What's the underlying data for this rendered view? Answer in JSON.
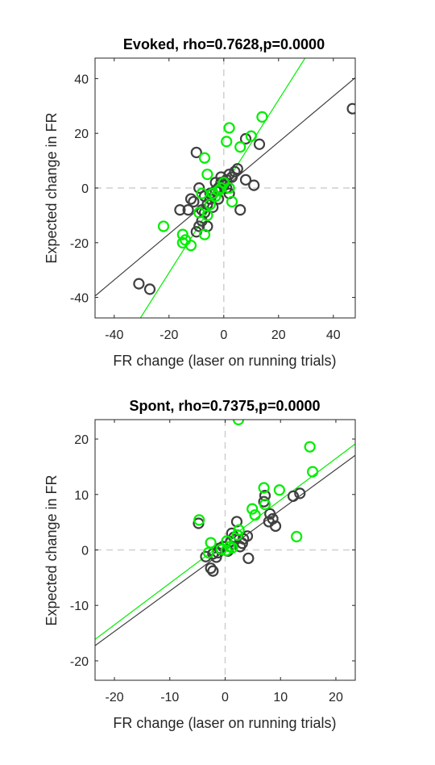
{
  "chart_data": [
    {
      "type": "scatter",
      "title": "Evoked, rho=0.7628,p=0.0000",
      "xlabel": "FR change (laser on running trials)",
      "ylabel": "Expected change in FR",
      "xlim": [
        -47,
        48
      ],
      "ylim": [
        -47.5,
        47.5
      ],
      "xticks": [
        -40,
        -20,
        0,
        20,
        40
      ],
      "yticks": [
        -40,
        -20,
        0,
        20,
        40
      ],
      "grid": false,
      "reference_lines": {
        "x": 0,
        "y": 0
      },
      "series": [
        {
          "color": "#404040",
          "fit": {
            "slope": 0.84,
            "intercept": 0.0
          },
          "points": [
            [
              47,
              29
            ],
            [
              -31,
              -35
            ],
            [
              -27,
              -37
            ],
            [
              -10,
              13
            ],
            [
              8,
              18
            ],
            [
              13,
              16
            ],
            [
              11,
              1
            ],
            [
              8,
              3
            ],
            [
              4,
              6
            ],
            [
              5,
              7
            ],
            [
              2,
              5
            ],
            [
              3,
              4
            ],
            [
              1,
              3
            ],
            [
              -1,
              2
            ],
            [
              -2,
              0
            ],
            [
              -3,
              -1
            ],
            [
              0,
              1
            ],
            [
              1,
              0
            ],
            [
              6,
              -8
            ],
            [
              -5,
              -2
            ],
            [
              -6,
              -6
            ],
            [
              -7,
              -9
            ],
            [
              -8,
              -12
            ],
            [
              -9,
              -14
            ],
            [
              -10,
              -16
            ],
            [
              -11,
              -5
            ],
            [
              -12,
              -4
            ],
            [
              -13,
              -8
            ],
            [
              -16,
              -8
            ],
            [
              -8,
              -8
            ],
            [
              -6,
              -14
            ],
            [
              -4,
              -7
            ],
            [
              -2,
              -4
            ],
            [
              -9,
              0
            ],
            [
              2,
              -2
            ],
            [
              -1,
              4
            ],
            [
              -3,
              2
            ],
            [
              -5,
              -4
            ],
            [
              -7,
              -3
            ]
          ]
        },
        {
          "color": "#00ee00",
          "fit": {
            "slope": 1.58,
            "intercept": 0.6
          },
          "points": [
            [
              14,
              26
            ],
            [
              2,
              22
            ],
            [
              1,
              17
            ],
            [
              10,
              19
            ],
            [
              6,
              15
            ],
            [
              -7,
              11
            ],
            [
              -15,
              -17
            ],
            [
              -14,
              -19
            ],
            [
              -12,
              -21
            ],
            [
              -15,
              -20
            ],
            [
              -22,
              -14
            ],
            [
              -7,
              -17
            ],
            [
              -6,
              -10
            ],
            [
              -9,
              -9
            ],
            [
              -5,
              -6
            ],
            [
              -3,
              -3
            ],
            [
              -1,
              0
            ],
            [
              0,
              2
            ],
            [
              -2,
              -1
            ],
            [
              -6,
              5
            ],
            [
              3,
              -5
            ],
            [
              -4,
              -2
            ],
            [
              -8,
              -2
            ],
            [
              2,
              0
            ]
          ]
        }
      ]
    },
    {
      "type": "scatter",
      "title": "Spont, rho=0.7375,p=0.0000",
      "xlabel": "FR change (laser on running trials)",
      "ylabel": "Expected change in FR",
      "xlim": [
        -23.5,
        23.5
      ],
      "ylim": [
        -23.5,
        23.5
      ],
      "xticks": [
        -20,
        -10,
        0,
        10,
        20
      ],
      "yticks": [
        -20,
        -10,
        0,
        10,
        20
      ],
      "grid": false,
      "reference_lines": {
        "x": 0,
        "y": 0
      },
      "series": [
        {
          "color": "#404040",
          "fit": {
            "slope": 0.73,
            "intercept": -0.1
          },
          "points": [
            [
              13.5,
              10.2
            ],
            [
              12.3,
              9.7
            ],
            [
              7,
              8.7
            ],
            [
              7.2,
              9.8
            ],
            [
              8.1,
              6.5
            ],
            [
              8.6,
              5.6
            ],
            [
              9.1,
              4.3
            ],
            [
              7.9,
              5.1
            ],
            [
              2.1,
              5.1
            ],
            [
              -4.8,
              4.8
            ],
            [
              4,
              2.5
            ],
            [
              3.3,
              2
            ],
            [
              3.1,
              1.2
            ],
            [
              1.6,
              2.3
            ],
            [
              1,
              1.5
            ],
            [
              1.2,
              3
            ],
            [
              0.5,
              -0.2
            ],
            [
              -0.4,
              0.6
            ],
            [
              -1,
              0.3
            ],
            [
              -1.3,
              -0.5
            ],
            [
              -2.2,
              -0.7
            ],
            [
              -1.6,
              -1.3
            ],
            [
              -3.5,
              -1.2
            ],
            [
              -2.2,
              -3.8
            ],
            [
              -2.6,
              -3.3
            ],
            [
              4.2,
              -1.5
            ],
            [
              2.7,
              0.6
            ],
            [
              1.9,
              1.9
            ]
          ]
        },
        {
          "color": "#00ee00",
          "fit": {
            "slope": 0.75,
            "intercept": 1.5
          },
          "points": [
            [
              2.4,
              23.5
            ],
            [
              15.3,
              18.6
            ],
            [
              15.8,
              14.1
            ],
            [
              7,
              11.2
            ],
            [
              9.8,
              10.8
            ],
            [
              7.2,
              8.2
            ],
            [
              4.9,
              7.4
            ],
            [
              5.4,
              6.3
            ],
            [
              -4.7,
              5.4
            ],
            [
              12.9,
              2.4
            ],
            [
              2.5,
              3.6
            ],
            [
              -2.6,
              1.3
            ],
            [
              -3,
              -0.5
            ],
            [
              0.2,
              -0.1
            ],
            [
              0.8,
              0.6
            ],
            [
              1.3,
              0.4
            ],
            [
              -0.7,
              0.1
            ],
            [
              2.2,
              2.7
            ],
            [
              0.3,
              1.6
            ]
          ]
        }
      ]
    }
  ]
}
